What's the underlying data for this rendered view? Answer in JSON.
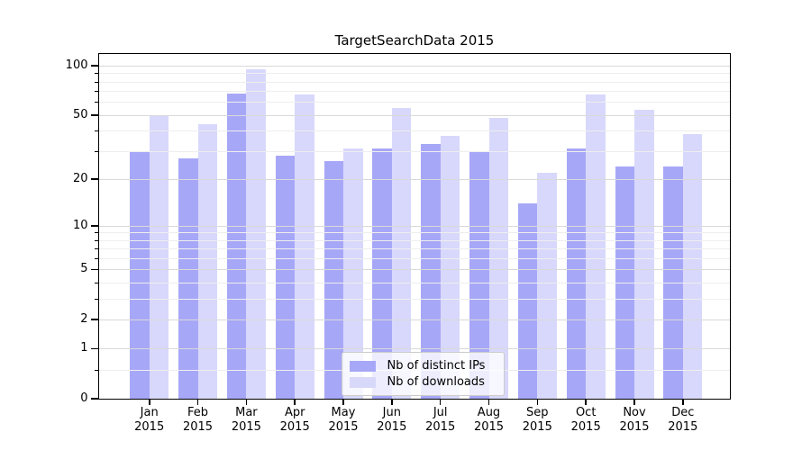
{
  "chart_data": {
    "type": "bar",
    "title": "TargetSearchData 2015",
    "categories": [
      "Jan 2015",
      "Feb 2015",
      "Mar 2015",
      "Apr 2015",
      "May 2015",
      "Jun 2015",
      "Jul 2015",
      "Aug 2015",
      "Sep 2015",
      "Oct 2015",
      "Nov 2015",
      "Dec 2015"
    ],
    "series": [
      {
        "name": "Nb of distinct IPs",
        "fill": "rgba(10,10,235,0.36)",
        "swatch": "#a7a7f7",
        "values": [
          30,
          27,
          68,
          28,
          26,
          31,
          33,
          30,
          14,
          31,
          24,
          24
        ]
      },
      {
        "name": "Nb of downloads",
        "fill": "rgba(10,10,235,0.16)",
        "swatch": "#d8d8fa",
        "values": [
          49,
          44,
          95,
          67,
          31,
          55,
          37,
          48,
          22,
          67,
          54,
          38
        ]
      }
    ],
    "yscale": "log1p",
    "ylim": [
      0,
      118
    ],
    "yticks": [
      0,
      1,
      2,
      5,
      10,
      20,
      50,
      100
    ],
    "minor_yticks": [
      0.5,
      3,
      4,
      6,
      7,
      8,
      9,
      30,
      40,
      60,
      70,
      80,
      90
    ],
    "grid": true,
    "legend_position": "lower center"
  },
  "colors": {
    "grid_major": "#d9d9d9",
    "grid_minor": "#eeeeee",
    "axis": "#000000",
    "legend_border": "#cccccc"
  }
}
